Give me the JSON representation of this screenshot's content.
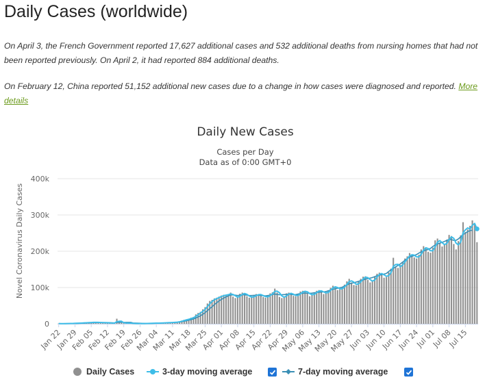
{
  "page": {
    "title": "Daily Cases (worldwide)",
    "note1": "On April 3, the French Government reported 17,627 additional cases and 532 additional deaths from nursing homes that had not been reported previously. On April 2, it had reported 884 additional deaths.",
    "note2_text": "On February 12, China reported 51,152 additional new cases due to a change in how cases were diagnosed and reported.",
    "note2_link": "More details"
  },
  "legend": {
    "daily": "Daily Cases",
    "avg3": "3-day moving average",
    "avg7": "7-day moving average"
  },
  "colors": {
    "bars": "#909090",
    "avg3": "#3ebde8",
    "avg7": "#3a8fb5",
    "grid": "#e6e6e6",
    "checkbox": "#1f74d6"
  },
  "chart_data": {
    "type": "bar",
    "title": "Daily New Cases",
    "subtitle": "Cases per Day",
    "subtitle2": "Data as of 0:00 GMT+0",
    "ylabel": "Novel Coronavirus Daily Cases",
    "xlabel": "",
    "ylim": [
      0,
      400000
    ],
    "yticks": [
      "0",
      "100k",
      "200k",
      "300k",
      "400k"
    ],
    "x_start": "2020-01-22",
    "xticks": [
      "Jan 22",
      "Jan 29",
      "Feb 05",
      "Feb 12",
      "Feb 19",
      "Feb 26",
      "Mar 04",
      "Mar 11",
      "Mar 18",
      "Mar 25",
      "Apr 01",
      "Apr 08",
      "Apr 15",
      "Apr 22",
      "Apr 29",
      "May 06",
      "May 13",
      "May 20",
      "May 27",
      "Jun 03",
      "Jun 10",
      "Jun 17",
      "Jun 24",
      "Jul 01",
      "Jul 08",
      "Jul 15",
      "Jul 22"
    ],
    "series": [
      {
        "name": "Daily Cases",
        "type": "bar",
        "values": [
          600,
          300,
          500,
          700,
          800,
          1000,
          1200,
          1700,
          2000,
          2100,
          2600,
          2800,
          3200,
          3600,
          3900,
          4300,
          3800,
          3600,
          3300,
          3100,
          2900,
          2600,
          2000,
          2100,
          1900,
          14000,
          5000,
          2600,
          2100,
          2000,
          1900,
          1700,
          700,
          600,
          700,
          600,
          800,
          900,
          1100,
          1400,
          1800,
          1700,
          1900,
          2200,
          2300,
          2700,
          3000,
          3200,
          3500,
          4000,
          4500,
          5000,
          7000,
          9000,
          11000,
          12500,
          14000,
          17000,
          19000,
          26000,
          30000,
          33000,
          40000,
          46000,
          56000,
          63000,
          66000,
          70000,
          72000,
          75000,
          78000,
          80000,
          79000,
          82000,
          86000,
          75000,
          71000,
          74000,
          83000,
          86000,
          82000,
          76000,
          72000,
          73000,
          78000,
          82000,
          81000,
          79000,
          74000,
          72000,
          77000,
          84000,
          87000,
          97000,
          86000,
          74000,
          71000,
          75000,
          84000,
          86000,
          82000,
          77000,
          76000,
          82000,
          89000,
          91000,
          89000,
          85000,
          76000,
          80000,
          87000,
          91000,
          93000,
          89000,
          82000,
          85000,
          92000,
          99000,
          105000,
          102000,
          93000,
          95000,
          101000,
          108000,
          117000,
          124000,
          114000,
          107000,
          106000,
          117000,
          124000,
          130000,
          131000,
          121000,
          114000,
          118000,
          130000,
          138000,
          141000,
          137000,
          127000,
          129000,
          142000,
          152000,
          182000,
          156000,
          154000,
          162000,
          170000,
          180000,
          186000,
          195000,
          190000,
          183000,
          180000,
          190000,
          205000,
          214000,
          210000,
          198000,
          196000,
          210000,
          230000,
          235000,
          223000,
          213000,
          219000,
          232000,
          245000,
          242000,
          220000,
          205000,
          228000,
          244000,
          280000,
          253000,
          260000,
          270000,
          285000,
          275000,
          225000
        ]
      },
      {
        "name": "3-day moving average",
        "type": "line",
        "values": [
          600,
          450,
          467,
          500,
          667,
          833,
          1000,
          1300,
          1633,
          1933,
          2233,
          2500,
          2867,
          3200,
          3567,
          3933,
          4000,
          3900,
          3567,
          3333,
          3100,
          2867,
          2500,
          2233,
          2000,
          6000,
          6967,
          7200,
          3233,
          2233,
          2000,
          1867,
          1433,
          1000,
          667,
          633,
          700,
          767,
          933,
          1133,
          1433,
          1633,
          1800,
          1933,
          2133,
          2400,
          2667,
          2967,
          3233,
          3567,
          4000,
          4500,
          5500,
          7000,
          9000,
          10833,
          12500,
          14500,
          16667,
          20667,
          25000,
          29667,
          34333,
          39667,
          47333,
          55000,
          61667,
          66333,
          69333,
          72333,
          75000,
          77667,
          79000,
          80333,
          82333,
          81000,
          77333,
          73333,
          76000,
          81000,
          83667,
          81333,
          76667,
          73667,
          74333,
          77667,
          80333,
          80667,
          78000,
          75000,
          74333,
          77667,
          82667,
          89333,
          90000,
          85667,
          77000,
          73333,
          76667,
          81667,
          84000,
          81667,
          78333,
          78333,
          82333,
          87333,
          89667,
          88333,
          83333,
          80333,
          81000,
          86000,
          90333,
          91000,
          88000,
          85333,
          86333,
          92000,
          98667,
          102000,
          100000,
          96667,
          96333,
          101333,
          108667,
          116333,
          118333,
          115000,
          109000,
          110000,
          115667,
          123667,
          128333,
          127333,
          122000,
          117667,
          120667,
          128667,
          136333,
          138667,
          135000,
          131000,
          132667,
          141000,
          158667,
          163333,
          164000,
          157333,
          162000,
          170667,
          178667,
          187000,
          190333,
          189333,
          184333,
          184333,
          191667,
          203000,
          209667,
          207333,
          201333,
          201333,
          212000,
          225000,
          229333,
          223667,
          218333,
          221333,
          232000,
          239667,
          235667,
          222333,
          217667,
          225667,
          250667,
          259000,
          264333,
          261000,
          271667,
          276667,
          261667
        ]
      },
      {
        "name": "7-day moving average",
        "type": "line",
        "values": [
          600,
          450,
          467,
          525,
          580,
          650,
          729,
          900,
          1114,
          1343,
          1586,
          1829,
          2086,
          2371,
          2743,
          3071,
          3314,
          3486,
          3557,
          3543,
          3500,
          3357,
          3100,
          2800,
          2543,
          3957,
          4057,
          4000,
          3914,
          3929,
          3929,
          3943,
          2257,
          1957,
          1700,
          1457,
          1214,
          1057,
          967,
          1029,
          1129,
          1271,
          1443,
          1714,
          2000,
          2314,
          2600,
          2843,
          3080,
          3400,
          3700,
          4100,
          4800,
          5900,
          7100,
          8500,
          10000,
          11700,
          13400,
          16000,
          19000,
          22000,
          26000,
          31000,
          36000,
          42000,
          47000,
          53000,
          58000,
          63000,
          67000,
          71000,
          74000,
          77000,
          79500,
          79500,
          79000,
          78000,
          79000,
          80000,
          80000,
          79000,
          78000,
          78000,
          78500,
          79000,
          79000,
          78000,
          77500,
          77000,
          78000,
          79000,
          81000,
          82000,
          81000,
          80000,
          80000,
          80500,
          81000,
          82000,
          81000,
          80000,
          80500,
          82000,
          83500,
          84000,
          84500,
          84500,
          84000,
          84500,
          85500,
          86500,
          87000,
          87500,
          88000,
          89000,
          91000,
          93000,
          95000,
          96500,
          98000,
          99500,
          101000,
          104000,
          107000,
          110000,
          112000,
          113000,
          115000,
          117000,
          119000,
          121000,
          123000,
          124500,
          126000,
          127500,
          130000,
          132500,
          134000,
          135500,
          137000,
          139000,
          144000,
          149000,
          153000,
          157000,
          161000,
          165000,
          170000,
          175000,
          180000,
          183500,
          186000,
          188000,
          191000,
          195000,
          198500,
          201000,
          203000,
          205000,
          208000,
          213000,
          217000,
          220000,
          222500,
          224500,
          227000,
          230000,
          232500,
          232000,
          230000,
          230000,
          234000,
          240000,
          246000,
          250000,
          254000,
          257000,
          258000
        ]
      }
    ]
  }
}
